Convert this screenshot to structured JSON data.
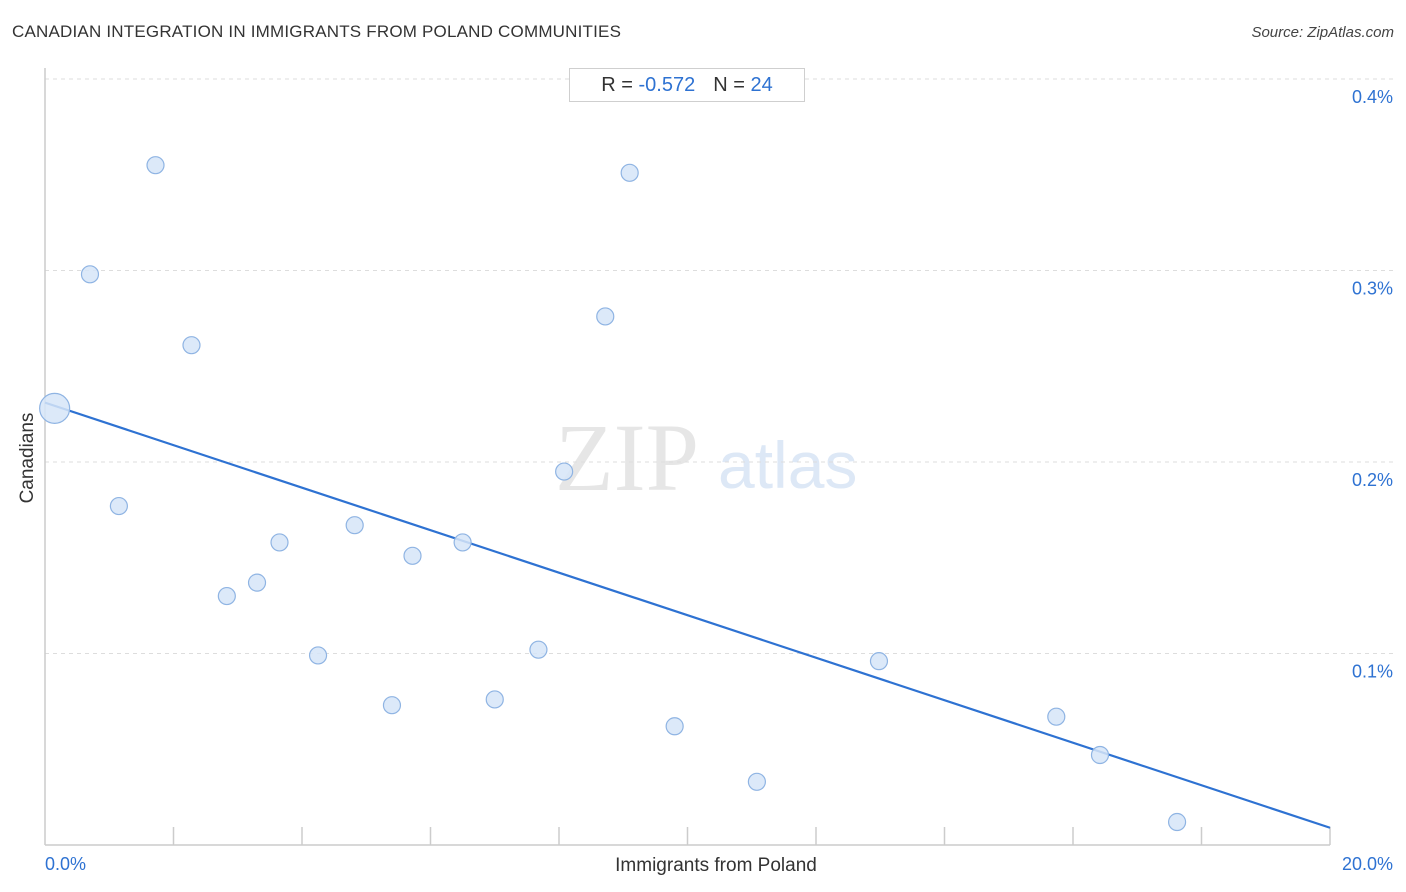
{
  "header": {
    "title": "CANADIAN INTEGRATION IN IMMIGRANTS FROM POLAND COMMUNITIES",
    "source": "Source: ZipAtlas.com"
  },
  "stats": {
    "r_label": "R =",
    "r_value": "-0.572",
    "n_label": "N =",
    "n_value": "24"
  },
  "watermark": {
    "zip": "ZIP",
    "atlas": "atlas"
  },
  "colors": {
    "accent": "#2e72d2",
    "point_fill": "#d6e5f8",
    "point_stroke": "#8fb4e3",
    "grid": "#dddddd",
    "axis": "#cccccc"
  },
  "chart_data": {
    "type": "scatter",
    "title": "CANADIAN INTEGRATION IN IMMIGRANTS FROM POLAND COMMUNITIES",
    "xlabel": "Immigrants from Poland",
    "ylabel": "Canadians",
    "xlim": [
      0,
      20
    ],
    "ylim": [
      0,
      0.4
    ],
    "x_unit": "%",
    "y_unit": "%",
    "x_tick_labels": [
      "0.0%",
      "20.0%"
    ],
    "y_ticks": [
      {
        "value": 0.1,
        "label": "0.1%"
      },
      {
        "value": 0.2,
        "label": "0.2%"
      },
      {
        "value": 0.3,
        "label": "0.3%"
      },
      {
        "value": 0.4,
        "label": "0.4%"
      }
    ],
    "grid": true,
    "points": [
      {
        "x": 0.15,
        "y": 0.228,
        "large": true
      },
      {
        "x": 0.7,
        "y": 0.298
      },
      {
        "x": 1.15,
        "y": 0.177
      },
      {
        "x": 1.72,
        "y": 0.355
      },
      {
        "x": 2.28,
        "y": 0.261
      },
      {
        "x": 2.83,
        "y": 0.13
      },
      {
        "x": 3.3,
        "y": 0.137
      },
      {
        "x": 3.65,
        "y": 0.158
      },
      {
        "x": 4.25,
        "y": 0.099
      },
      {
        "x": 4.82,
        "y": 0.167
      },
      {
        "x": 5.4,
        "y": 0.073
      },
      {
        "x": 5.72,
        "y": 0.151
      },
      {
        "x": 6.5,
        "y": 0.158
      },
      {
        "x": 7.0,
        "y": 0.076
      },
      {
        "x": 7.68,
        "y": 0.102
      },
      {
        "x": 8.08,
        "y": 0.195
      },
      {
        "x": 8.72,
        "y": 0.276
      },
      {
        "x": 9.1,
        "y": 0.351
      },
      {
        "x": 9.8,
        "y": 0.062
      },
      {
        "x": 11.08,
        "y": 0.033
      },
      {
        "x": 12.98,
        "y": 0.096
      },
      {
        "x": 15.74,
        "y": 0.067
      },
      {
        "x": 16.42,
        "y": 0.047
      },
      {
        "x": 17.62,
        "y": 0.012
      }
    ],
    "trendline": {
      "x": [
        0,
        20
      ],
      "y": [
        0.231,
        0.009
      ]
    }
  }
}
